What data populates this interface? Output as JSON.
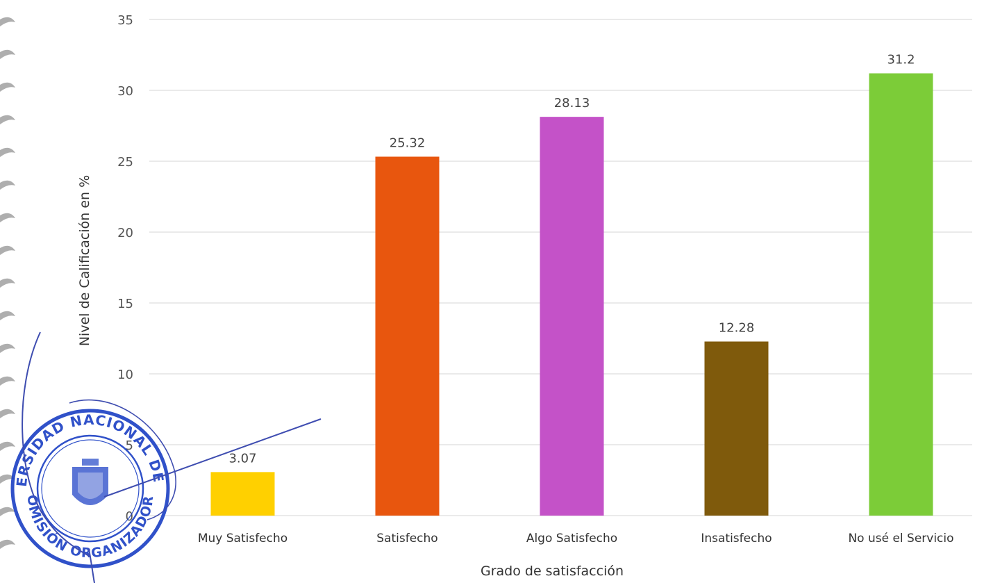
{
  "chart_data": {
    "type": "bar",
    "title": "",
    "xlabel": "Grado de satisfacción",
    "ylabel": "Nivel de Calificación en %",
    "categories": [
      "Muy Satisfecho",
      "Satisfecho",
      "Algo Satisfecho",
      "Insatisfecho",
      "No usé el Servicio"
    ],
    "values": [
      3.07,
      25.32,
      28.13,
      12.28,
      31.2
    ],
    "data_labels": [
      "3.07",
      "25.32",
      "28.13",
      "12.28",
      "31.2"
    ],
    "yticks": [
      "0",
      "5",
      "10",
      "15",
      "20",
      "25",
      "30",
      "35"
    ],
    "ylim": [
      0,
      35
    ],
    "grid": true,
    "legend": "none",
    "colors": [
      "#ffd000",
      "#e8560e",
      "#c452c8",
      "#7f5a0c",
      "#7ccc38"
    ]
  },
  "stamp": {
    "text": "UNIVERSIDAD NACIONAL DE JAÉN · COMISIÓN ORGANIZADORA",
    "color": "#1a3fc4"
  }
}
